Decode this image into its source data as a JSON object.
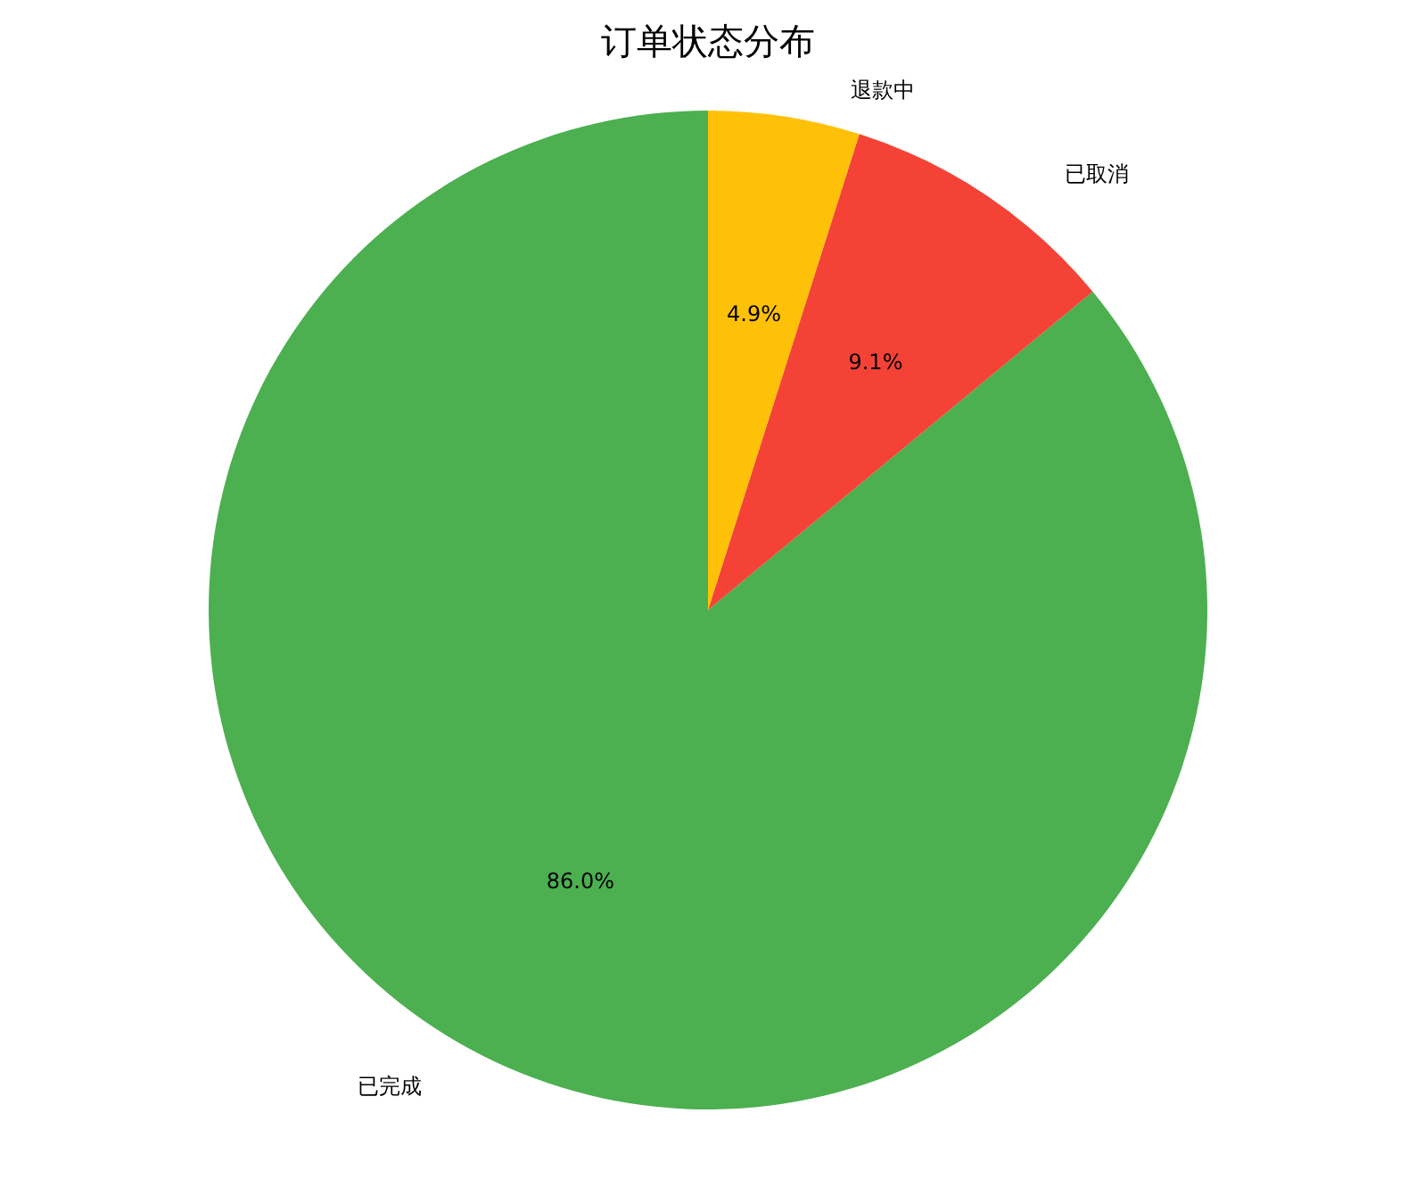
{
  "chart_data": {
    "type": "pie",
    "title": "订单状态分布",
    "categories": [
      "已完成",
      "已取消",
      "退款中"
    ],
    "values": [
      86.0,
      9.1,
      4.9
    ],
    "colors": [
      "#4caf50",
      "#f44336",
      "#ffc107"
    ],
    "value_labels": [
      "86.0%",
      "9.1%",
      "4.9%"
    ],
    "legend": false
  }
}
